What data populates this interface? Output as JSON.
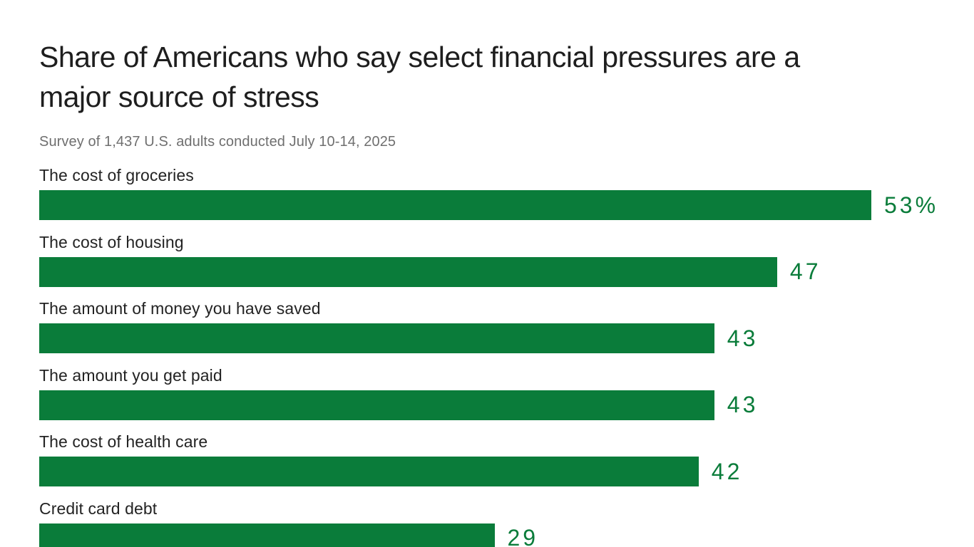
{
  "chart_data": {
    "type": "bar",
    "orientation": "horizontal",
    "title": "Share of Americans who say select financial pressures are a major source of stress",
    "title_lines": [
      "Share of Americans who say select financial pressures are a",
      "major source of stress"
    ],
    "subtitle": "Survey of 1,437 U.S. adults conducted July 10-14, 2025",
    "categories": [
      "The cost of groceries",
      "The cost of housing",
      "The amount of money you have saved",
      "The amount you get paid",
      "The cost of health care",
      "Credit card debt"
    ],
    "values": [
      53,
      47,
      43,
      43,
      42,
      29
    ],
    "value_labels": [
      "53%",
      "47",
      "43",
      "43",
      "42",
      "29"
    ],
    "xlim": [
      0,
      53
    ],
    "bar_color": "#0a7c3a",
    "value_color": "#0a7c3a",
    "grid": false,
    "legend": false,
    "rows": [
      {
        "label": "The cost of groceries",
        "value": 53,
        "display": "53%"
      },
      {
        "label": "The cost of housing",
        "value": 47,
        "display": "47"
      },
      {
        "label": "The amount of money you have saved",
        "value": 43,
        "display": "43"
      },
      {
        "label": "The amount you get paid",
        "value": 43,
        "display": "43"
      },
      {
        "label": "The cost of health care",
        "value": 42,
        "display": "42"
      },
      {
        "label": "Credit card debt",
        "value": 29,
        "display": "29"
      }
    ]
  }
}
